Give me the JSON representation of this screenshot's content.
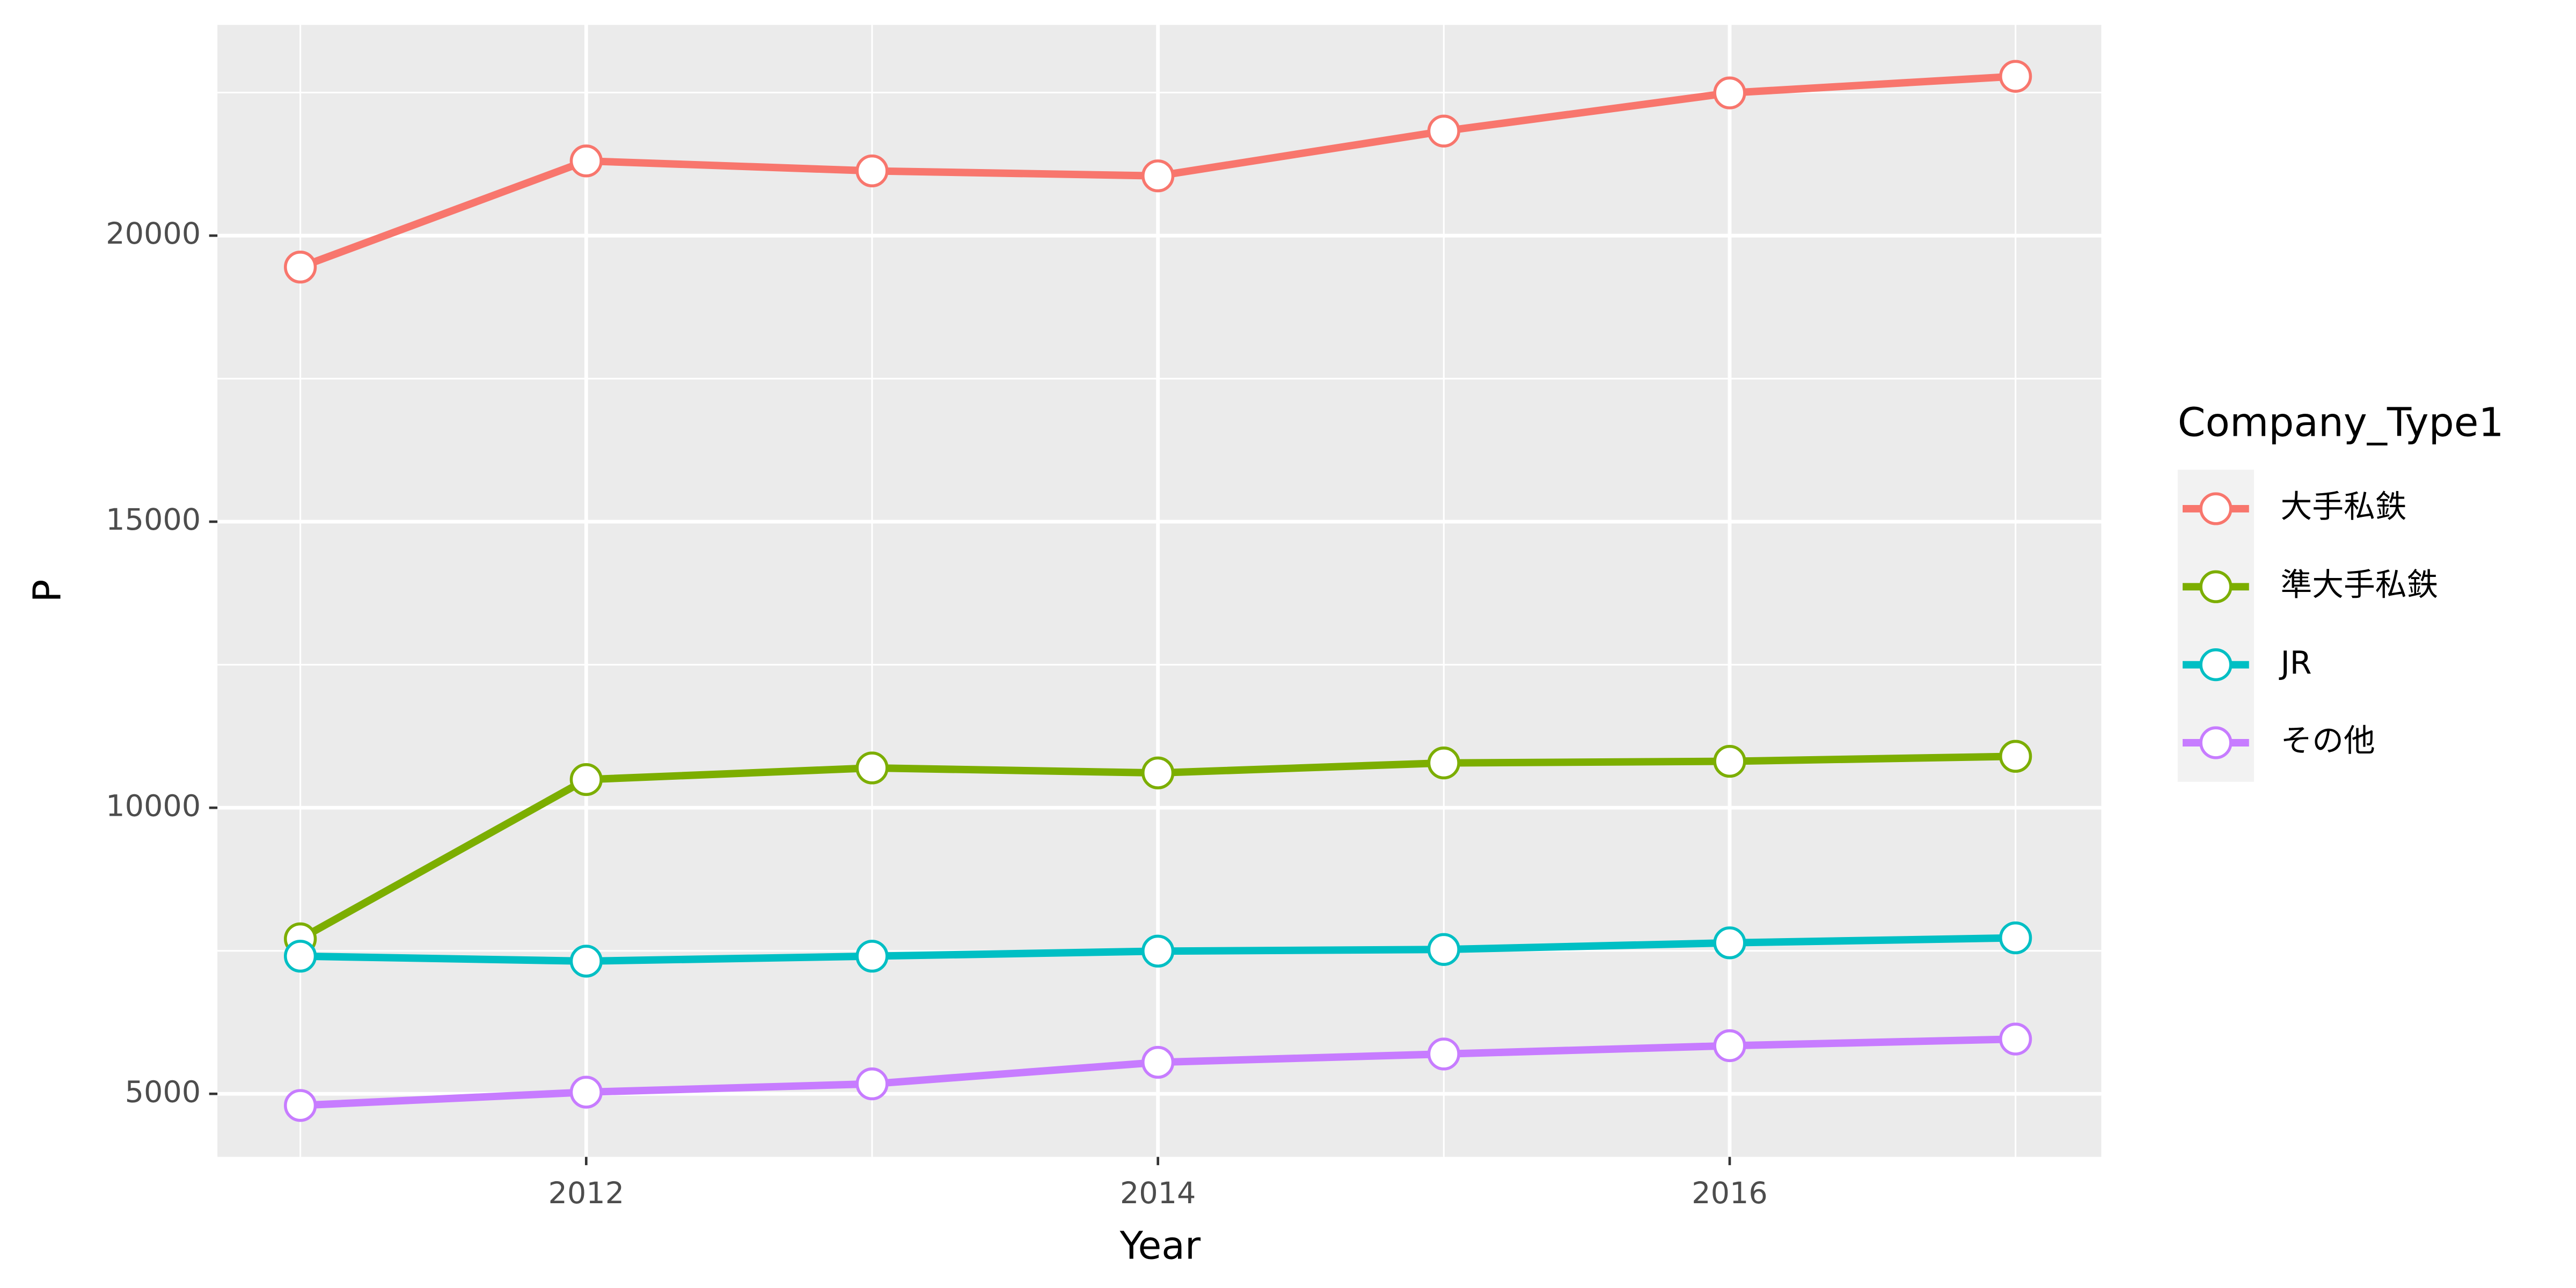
{
  "chart_data": {
    "type": "line",
    "x_label": "Year",
    "y_label": "P",
    "legend_title": "Company_Type1",
    "legend_position": "right",
    "grid": true,
    "x": [
      2011,
      2012,
      2013,
      2014,
      2015,
      2016,
      2017
    ],
    "xlim": [
      2010.71,
      2017.3
    ],
    "xticks": [
      2012,
      2014,
      2016
    ],
    "ylim": [
      3898,
      23683
    ],
    "yticks": [
      5000,
      10000,
      15000,
      20000
    ],
    "series": [
      {
        "name": "大手私鉄",
        "color": "#F8766D",
        "values": [
          19450,
          21305,
          21131,
          21044,
          21827,
          22494,
          22784
        ]
      },
      {
        "name": "準大手私鉄",
        "color": "#7CAE00",
        "values": [
          7709,
          10493,
          10696,
          10609,
          10783,
          10812,
          10899
        ]
      },
      {
        "name": "JR",
        "color": "#00BFC4",
        "values": [
          7406,
          7319,
          7406,
          7494,
          7523,
          7639,
          7726
        ]
      },
      {
        "name": "その他",
        "color": "#C77CFF",
        "values": [
          4797,
          5029,
          5174,
          5551,
          5696,
          5841,
          5957
        ]
      }
    ]
  }
}
